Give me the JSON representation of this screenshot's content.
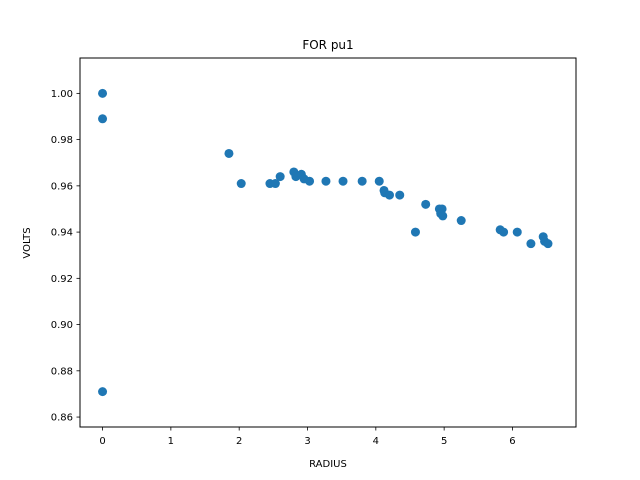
{
  "chart_data": {
    "type": "scatter",
    "title": "FOR  pu1",
    "xlabel": "RADIUS",
    "ylabel": "VOLTS",
    "xlim": [
      -0.33,
      6.93
    ],
    "ylim": [
      0.8557,
      1.0153
    ],
    "xticks": [
      0,
      1,
      2,
      3,
      4,
      5,
      6
    ],
    "yticks": [
      0.86,
      0.88,
      0.9,
      0.92,
      0.94,
      0.96,
      0.98,
      1.0
    ],
    "ytick_labels": [
      "0.86",
      "0.88",
      "0.90",
      "0.92",
      "0.94",
      "0.96",
      "0.98",
      "1.00"
    ],
    "grid": false,
    "marker_color": "#1f77b4",
    "points": [
      {
        "x": 0.0,
        "y": 1.0
      },
      {
        "x": 0.0,
        "y": 0.989
      },
      {
        "x": 0.0,
        "y": 0.871
      },
      {
        "x": 1.85,
        "y": 0.974
      },
      {
        "x": 2.03,
        "y": 0.961
      },
      {
        "x": 2.45,
        "y": 0.961
      },
      {
        "x": 2.53,
        "y": 0.961
      },
      {
        "x": 2.6,
        "y": 0.964
      },
      {
        "x": 2.8,
        "y": 0.966
      },
      {
        "x": 2.83,
        "y": 0.964
      },
      {
        "x": 2.91,
        "y": 0.965
      },
      {
        "x": 2.95,
        "y": 0.963
      },
      {
        "x": 3.03,
        "y": 0.962
      },
      {
        "x": 3.27,
        "y": 0.962
      },
      {
        "x": 3.52,
        "y": 0.962
      },
      {
        "x": 3.8,
        "y": 0.962
      },
      {
        "x": 4.05,
        "y": 0.962
      },
      {
        "x": 4.12,
        "y": 0.958
      },
      {
        "x": 4.13,
        "y": 0.957
      },
      {
        "x": 4.2,
        "y": 0.956
      },
      {
        "x": 4.35,
        "y": 0.956
      },
      {
        "x": 4.58,
        "y": 0.94
      },
      {
        "x": 4.73,
        "y": 0.952
      },
      {
        "x": 4.93,
        "y": 0.95
      },
      {
        "x": 4.97,
        "y": 0.95
      },
      {
        "x": 4.95,
        "y": 0.948
      },
      {
        "x": 4.98,
        "y": 0.947
      },
      {
        "x": 5.25,
        "y": 0.945
      },
      {
        "x": 5.82,
        "y": 0.941
      },
      {
        "x": 5.87,
        "y": 0.94
      },
      {
        "x": 6.07,
        "y": 0.94
      },
      {
        "x": 6.27,
        "y": 0.935
      },
      {
        "x": 6.45,
        "y": 0.938
      },
      {
        "x": 6.47,
        "y": 0.936
      },
      {
        "x": 6.52,
        "y": 0.935
      }
    ]
  }
}
